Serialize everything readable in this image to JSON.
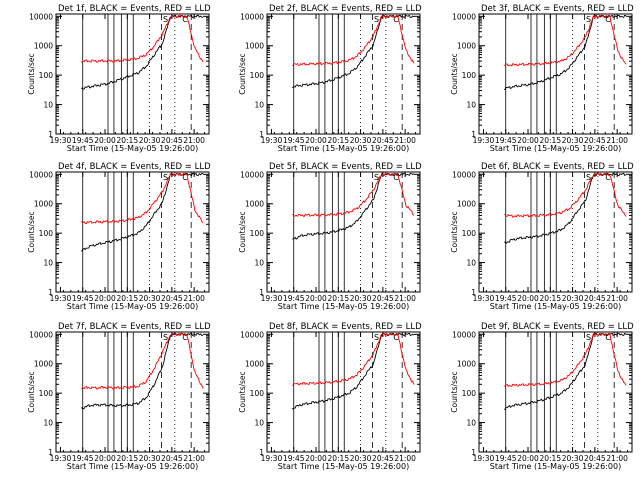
{
  "layout": {
    "rows": 3,
    "cols": 3
  },
  "common": {
    "xlabel": "Start Time (15-May-05 19:26:00)",
    "ylabel": "Counts/sec",
    "x_ticks": [
      "19:30",
      "19:45",
      "20:00",
      "20:15",
      "20:30",
      "20:45",
      "21:00"
    ],
    "y_ticks": [
      "1",
      "10",
      "100",
      "1000",
      "10000"
    ],
    "colors": {
      "events": "#000000",
      "lld": "#ff0000",
      "axis": "#000000"
    },
    "markers": [
      "S",
      "C"
    ]
  },
  "chart_data": [
    {
      "type": "line",
      "title": "Det 1f, BLACK = Events, RED = LLD",
      "xlabel": "Start Time (15-May-05 19:26:00)",
      "ylabel": "Counts/sec",
      "xlim": [
        "19:27",
        "21:10"
      ],
      "ylim": [
        1,
        12000
      ],
      "yscale": "log",
      "series": [
        {
          "name": "Events",
          "values": [
            35,
            40,
            45,
            50,
            60,
            75,
            95,
            120,
            200,
            500,
            1200,
            10000,
            10000,
            10000,
            10000,
            10000
          ]
        },
        {
          "name": "LLD",
          "values": [
            300,
            305,
            300,
            310,
            300,
            320,
            340,
            380,
            500,
            1000,
            2500,
            10000,
            10000,
            10000,
            800,
            280
          ]
        }
      ]
    },
    {
      "type": "line",
      "title": "Det 2f, BLACK = Events, RED = LLD",
      "xlabel": "Start Time (15-May-05 19:26:00)",
      "ylabel": "Counts/sec",
      "xlim": [
        "19:27",
        "21:10"
      ],
      "ylim": [
        1,
        12000
      ],
      "yscale": "log",
      "series": [
        {
          "name": "Events",
          "values": [
            40,
            45,
            48,
            52,
            58,
            70,
            90,
            115,
            190,
            450,
            1100,
            10000,
            10000,
            10000,
            10000,
            10000
          ]
        },
        {
          "name": "LLD",
          "values": [
            230,
            235,
            240,
            245,
            250,
            260,
            280,
            320,
            450,
            900,
            2200,
            10000,
            10000,
            10000,
            700,
            240
          ]
        }
      ]
    },
    {
      "type": "line",
      "title": "Det 3f, BLACK = Events, RED = LLD",
      "xlabel": "Start Time (15-May-05 19:26:00)",
      "ylabel": "Counts/sec",
      "xlim": [
        "19:27",
        "21:10"
      ],
      "ylim": [
        1,
        12000
      ],
      "yscale": "log",
      "series": [
        {
          "name": "Events",
          "values": [
            35,
            40,
            44,
            48,
            55,
            68,
            88,
            110,
            180,
            420,
            1000,
            10000,
            10000,
            10000,
            10000,
            10000
          ]
        },
        {
          "name": "LLD",
          "values": [
            220,
            225,
            230,
            235,
            240,
            250,
            270,
            300,
            420,
            850,
            2000,
            10000,
            10000,
            10000,
            650,
            220
          ]
        }
      ]
    },
    {
      "type": "line",
      "title": "Det 4f, BLACK = Events, RED = LLD",
      "xlabel": "Start Time (15-May-05 19:26:00)",
      "ylabel": "Counts/sec",
      "xlim": [
        "19:27",
        "21:10"
      ],
      "ylim": [
        1,
        12000
      ],
      "yscale": "log",
      "series": [
        {
          "name": "Events",
          "values": [
            25,
            35,
            42,
            48,
            55,
            65,
            80,
            100,
            180,
            450,
            1100,
            10000,
            10000,
            10000,
            10000,
            10000
          ]
        },
        {
          "name": "LLD",
          "values": [
            230,
            235,
            240,
            245,
            250,
            260,
            290,
            340,
            500,
            1100,
            2600,
            10000,
            10000,
            10000,
            600,
            220
          ]
        }
      ]
    },
    {
      "type": "line",
      "title": "Det 5f, BLACK = Events, RED = LLD",
      "xlabel": "Start Time (15-May-05 19:26:00)",
      "ylabel": "Counts/sec",
      "xlim": [
        "19:27",
        "21:10"
      ],
      "ylim": [
        1,
        12000
      ],
      "yscale": "log",
      "series": [
        {
          "name": "Events",
          "values": [
            60,
            80,
            90,
            95,
            100,
            110,
            130,
            160,
            260,
            600,
            1400,
            10000,
            10000,
            10000,
            10000,
            10000
          ]
        },
        {
          "name": "LLD",
          "values": [
            400,
            405,
            410,
            410,
            420,
            430,
            460,
            520,
            700,
            1300,
            3000,
            10000,
            10000,
            10000,
            900,
            420
          ]
        }
      ]
    },
    {
      "type": "line",
      "title": "Det 6f, BLACK = Events, RED = LLD",
      "xlabel": "Start Time (15-May-05 19:26:00)",
      "ylabel": "Counts/sec",
      "xlim": [
        "19:27",
        "21:10"
      ],
      "ylim": [
        1,
        12000
      ],
      "yscale": "log",
      "series": [
        {
          "name": "Events",
          "values": [
            45,
            60,
            68,
            72,
            78,
            88,
            105,
            130,
            220,
            550,
            1300,
            10000,
            10000,
            10000,
            10000,
            10000
          ]
        },
        {
          "name": "LLD",
          "values": [
            420,
            380,
            390,
            395,
            400,
            410,
            440,
            500,
            680,
            1300,
            2900,
            10000,
            10000,
            10000,
            850,
            400
          ]
        }
      ]
    },
    {
      "type": "line",
      "title": "Det 7f, BLACK = Events, RED = LLD",
      "xlabel": "Start Time (15-May-05 19:26:00)",
      "ylabel": "Counts/sec",
      "xlim": [
        "19:27",
        "21:10"
      ],
      "ylim": [
        1,
        12000
      ],
      "yscale": "log",
      "series": [
        {
          "name": "Events",
          "values": [
            30,
            38,
            40,
            40,
            38,
            38,
            40,
            45,
            70,
            200,
            800,
            10000,
            10000,
            10000,
            10000,
            10000
          ]
        },
        {
          "name": "LLD",
          "values": [
            150,
            155,
            150,
            160,
            150,
            155,
            160,
            170,
            250,
            700,
            2500,
            10000,
            10000,
            10000,
            500,
            150
          ]
        }
      ]
    },
    {
      "type": "line",
      "title": "Det 8f, BLACK = Events, RED = LLD",
      "xlabel": "Start Time (15-May-05 19:26:00)",
      "ylabel": "Counts/sec",
      "xlim": [
        "19:27",
        "21:10"
      ],
      "ylim": [
        1,
        12000
      ],
      "yscale": "log",
      "series": [
        {
          "name": "Events",
          "values": [
            30,
            40,
            45,
            50,
            55,
            65,
            80,
            100,
            170,
            420,
            1000,
            10000,
            10000,
            10000,
            10000,
            10000
          ]
        },
        {
          "name": "LLD",
          "values": [
            200,
            210,
            215,
            220,
            225,
            240,
            260,
            300,
            430,
            900,
            2200,
            10000,
            10000,
            10000,
            600,
            190
          ]
        }
      ]
    },
    {
      "type": "line",
      "title": "Det 9f, BLACK = Events, RED = LLD",
      "xlabel": "Start Time (15-May-05 19:26:00)",
      "ylabel": "Counts/sec",
      "xlim": [
        "19:27",
        "21:10"
      ],
      "ylim": [
        1,
        12000
      ],
      "yscale": "log",
      "series": [
        {
          "name": "Events",
          "values": [
            30,
            38,
            42,
            46,
            52,
            62,
            78,
            98,
            165,
            400,
            950,
            10000,
            10000,
            10000,
            10000,
            10000
          ]
        },
        {
          "name": "LLD",
          "values": [
            180,
            185,
            190,
            195,
            200,
            210,
            230,
            270,
            400,
            850,
            2100,
            10000,
            10000,
            10000,
            550,
            170
          ]
        }
      ]
    }
  ]
}
